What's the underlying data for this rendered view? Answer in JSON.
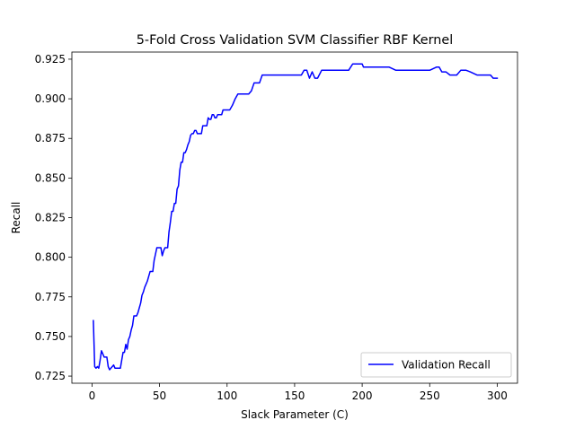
{
  "chart_data": {
    "type": "line",
    "title": "5-Fold Cross Validation SVM Classifier RBF Kernel",
    "xlabel": "Slack Parameter (C)",
    "ylabel": "Recall",
    "xlim": [
      -14.9,
      315.0
    ],
    "ylim": [
      0.7205,
      0.9295
    ],
    "xticks": [
      0,
      50,
      100,
      150,
      200,
      250,
      300
    ],
    "xtick_labels": [
      "0",
      "50",
      "100",
      "150",
      "200",
      "250",
      "300"
    ],
    "yticks": [
      0.725,
      0.75,
      0.775,
      0.8,
      0.825,
      0.85,
      0.875,
      0.9,
      0.925
    ],
    "ytick_labels": [
      "0.725",
      "0.750",
      "0.775",
      "0.800",
      "0.825",
      "0.850",
      "0.875",
      "0.900",
      "0.925"
    ],
    "grid": false,
    "legend_position": "lower right",
    "series": [
      {
        "name": "Validation Recall",
        "color": "#0000ff",
        "x": [
          1,
          2,
          3,
          4,
          5,
          6,
          7,
          8,
          9,
          10,
          11,
          12,
          13,
          14,
          15,
          16,
          17,
          18,
          19,
          20,
          21,
          22,
          23,
          24,
          25,
          26,
          27,
          28,
          29,
          30,
          31,
          32,
          33,
          34,
          35,
          36,
          37,
          38,
          39,
          40,
          41,
          42,
          43,
          44,
          45,
          46,
          47,
          48,
          49,
          50,
          51,
          52,
          53,
          54,
          55,
          56,
          57,
          58,
          59,
          60,
          61,
          62,
          63,
          64,
          65,
          66,
          67,
          68,
          69,
          70,
          71,
          72,
          73,
          74,
          75,
          76,
          77,
          78,
          79,
          80,
          81,
          82,
          83,
          84,
          85,
          86,
          87,
          88,
          89,
          90,
          91,
          92,
          93,
          94,
          95,
          96,
          97,
          98,
          99,
          100,
          102,
          104,
          106,
          108,
          110,
          112,
          114,
          116,
          118,
          120,
          122,
          124,
          126,
          128,
          130,
          132,
          134,
          136,
          138,
          140,
          142,
          144,
          146,
          148,
          150,
          155,
          157,
          159,
          161,
          163,
          165,
          167,
          170,
          175,
          180,
          185,
          190,
          193,
          195,
          200,
          201,
          205,
          210,
          215,
          220,
          225,
          230,
          240,
          250,
          255,
          257,
          259,
          262,
          265,
          270,
          273,
          277,
          280,
          285,
          290,
          295,
          297,
          300
        ],
        "y": [
          0.76,
          0.731,
          0.73,
          0.731,
          0.73,
          0.735,
          0.741,
          0.739,
          0.737,
          0.737,
          0.737,
          0.731,
          0.729,
          0.73,
          0.731,
          0.732,
          0.73,
          0.73,
          0.73,
          0.73,
          0.73,
          0.735,
          0.74,
          0.74,
          0.745,
          0.742,
          0.748,
          0.75,
          0.754,
          0.757,
          0.763,
          0.763,
          0.763,
          0.765,
          0.768,
          0.771,
          0.776,
          0.778,
          0.781,
          0.783,
          0.785,
          0.788,
          0.791,
          0.791,
          0.791,
          0.798,
          0.802,
          0.806,
          0.806,
          0.806,
          0.806,
          0.801,
          0.804,
          0.806,
          0.806,
          0.806,
          0.816,
          0.822,
          0.829,
          0.829,
          0.834,
          0.834,
          0.843,
          0.845,
          0.855,
          0.86,
          0.86,
          0.866,
          0.866,
          0.868,
          0.871,
          0.873,
          0.877,
          0.878,
          0.878,
          0.88,
          0.88,
          0.878,
          0.878,
          0.878,
          0.878,
          0.883,
          0.883,
          0.883,
          0.883,
          0.888,
          0.887,
          0.887,
          0.89,
          0.89,
          0.888,
          0.888,
          0.89,
          0.89,
          0.89,
          0.89,
          0.893,
          0.893,
          0.893,
          0.893,
          0.893,
          0.896,
          0.9,
          0.903,
          0.903,
          0.903,
          0.903,
          0.903,
          0.905,
          0.91,
          0.91,
          0.91,
          0.915,
          0.915,
          0.915,
          0.915,
          0.915,
          0.915,
          0.915,
          0.915,
          0.915,
          0.915,
          0.915,
          0.915,
          0.915,
          0.915,
          0.918,
          0.918,
          0.913,
          0.917,
          0.913,
          0.913,
          0.918,
          0.918,
          0.918,
          0.918,
          0.918,
          0.922,
          0.922,
          0.922,
          0.92,
          0.92,
          0.92,
          0.92,
          0.92,
          0.918,
          0.918,
          0.918,
          0.918,
          0.92,
          0.92,
          0.917,
          0.917,
          0.915,
          0.915,
          0.918,
          0.918,
          0.917,
          0.915,
          0.915,
          0.915,
          0.913,
          0.913
        ]
      }
    ]
  }
}
